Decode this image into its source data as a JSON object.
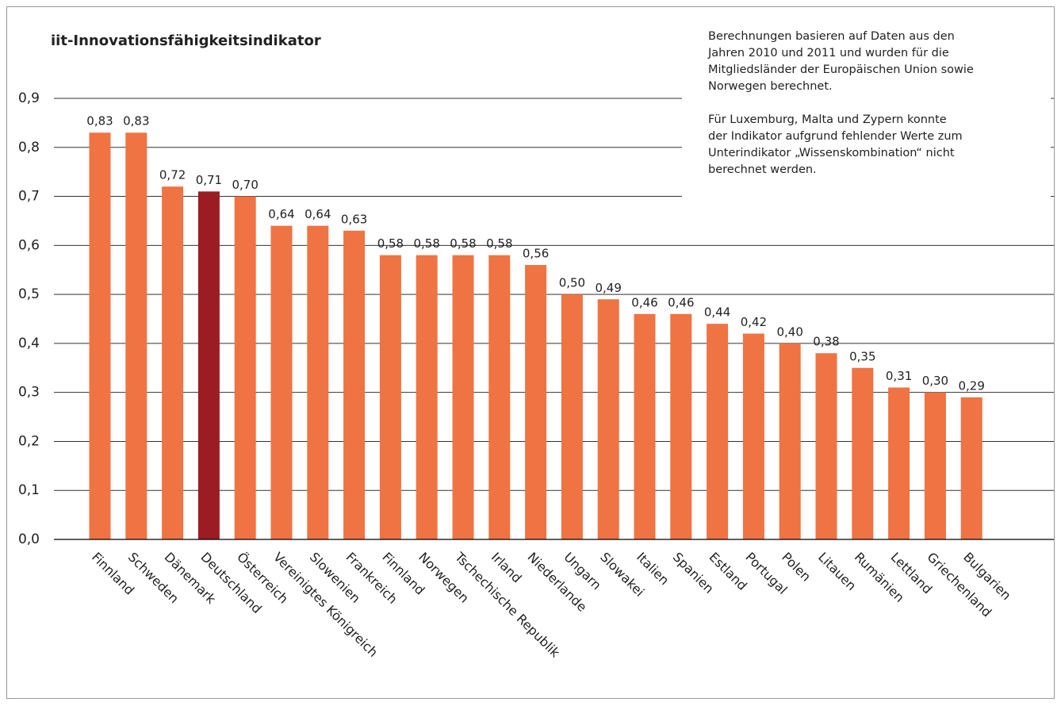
{
  "chart_data": {
    "type": "bar",
    "title": "iit-Innovationsfähigkeitsindikator",
    "note": [
      [
        "Berechnungen basieren auf Daten aus den",
        "Jahren 2010 und 2011 und wurden für die",
        "Mitgliedsländer der Europäischen Union sowie",
        "Norwegen berechnet."
      ],
      [
        "Für Luxemburg, Malta und Zypern konnte",
        "der Indikator aufgrund fehlender Werte zum",
        "Unterindikator „Wissenskombination“ nicht",
        "berechnet werden."
      ]
    ],
    "categories": [
      "Finnland",
      "Schweden",
      "Dänemark",
      "Deutschland",
      "Österreich",
      "Vereinigtes Königreich",
      "Slowenien",
      "Frankreich",
      "Finnland",
      "Norwegen",
      "Tschechische Republik",
      "Irland",
      "Niederlande",
      "Ungarn",
      "Slowakei",
      "Italien",
      "Spanien",
      "Estland",
      "Portugal",
      "Polen",
      "Litauen",
      "Rumänien",
      "Lettland",
      "Griechenland",
      "Bulgarien"
    ],
    "values": [
      0.83,
      0.83,
      0.72,
      0.71,
      0.7,
      0.64,
      0.64,
      0.63,
      0.58,
      0.58,
      0.58,
      0.58,
      0.56,
      0.5,
      0.49,
      0.46,
      0.46,
      0.44,
      0.42,
      0.4,
      0.38,
      0.35,
      0.31,
      0.3,
      0.29
    ],
    "value_labels": [
      "0,83",
      "0,83",
      "0,72",
      "0,71",
      "0,70",
      "0,64",
      "0,64",
      "0,63",
      "0,58",
      "0,58",
      "0,58",
      "0,58",
      "0,56",
      "0,50",
      "0,49",
      "0,46",
      "0,46",
      "0,44",
      "0,42",
      "0,40",
      "0,38",
      "0,35",
      "0,31",
      "0,30",
      "0,29"
    ],
    "colors": [
      "#f07343",
      "#f07343",
      "#f07343",
      "#9b1c22",
      "#f07343",
      "#f07343",
      "#f07343",
      "#f07343",
      "#f07343",
      "#f07343",
      "#f07343",
      "#f07343",
      "#f07343",
      "#f07343",
      "#f07343",
      "#f07343",
      "#f07343",
      "#f07343",
      "#f07343",
      "#f07343",
      "#f07343",
      "#f07343",
      "#f07343",
      "#f07343",
      "#f07343"
    ],
    "ylim": [
      0,
      0.9
    ],
    "yticks": [
      {
        "value": 0,
        "label": "0,0"
      },
      {
        "value": 0.1,
        "label": "0,1"
      },
      {
        "value": 0.2,
        "label": "0,2"
      },
      {
        "value": 0.3,
        "label": "0,3"
      },
      {
        "value": 0.4,
        "label": "0,4"
      },
      {
        "value": 0.5,
        "label": "0,5"
      },
      {
        "value": 0.6,
        "label": "0,6"
      },
      {
        "value": 0.7,
        "label": "0,7"
      },
      {
        "value": 0.8,
        "label": "0,8"
      },
      {
        "value": 0.9,
        "label": "0,9"
      }
    ],
    "grid": true
  }
}
